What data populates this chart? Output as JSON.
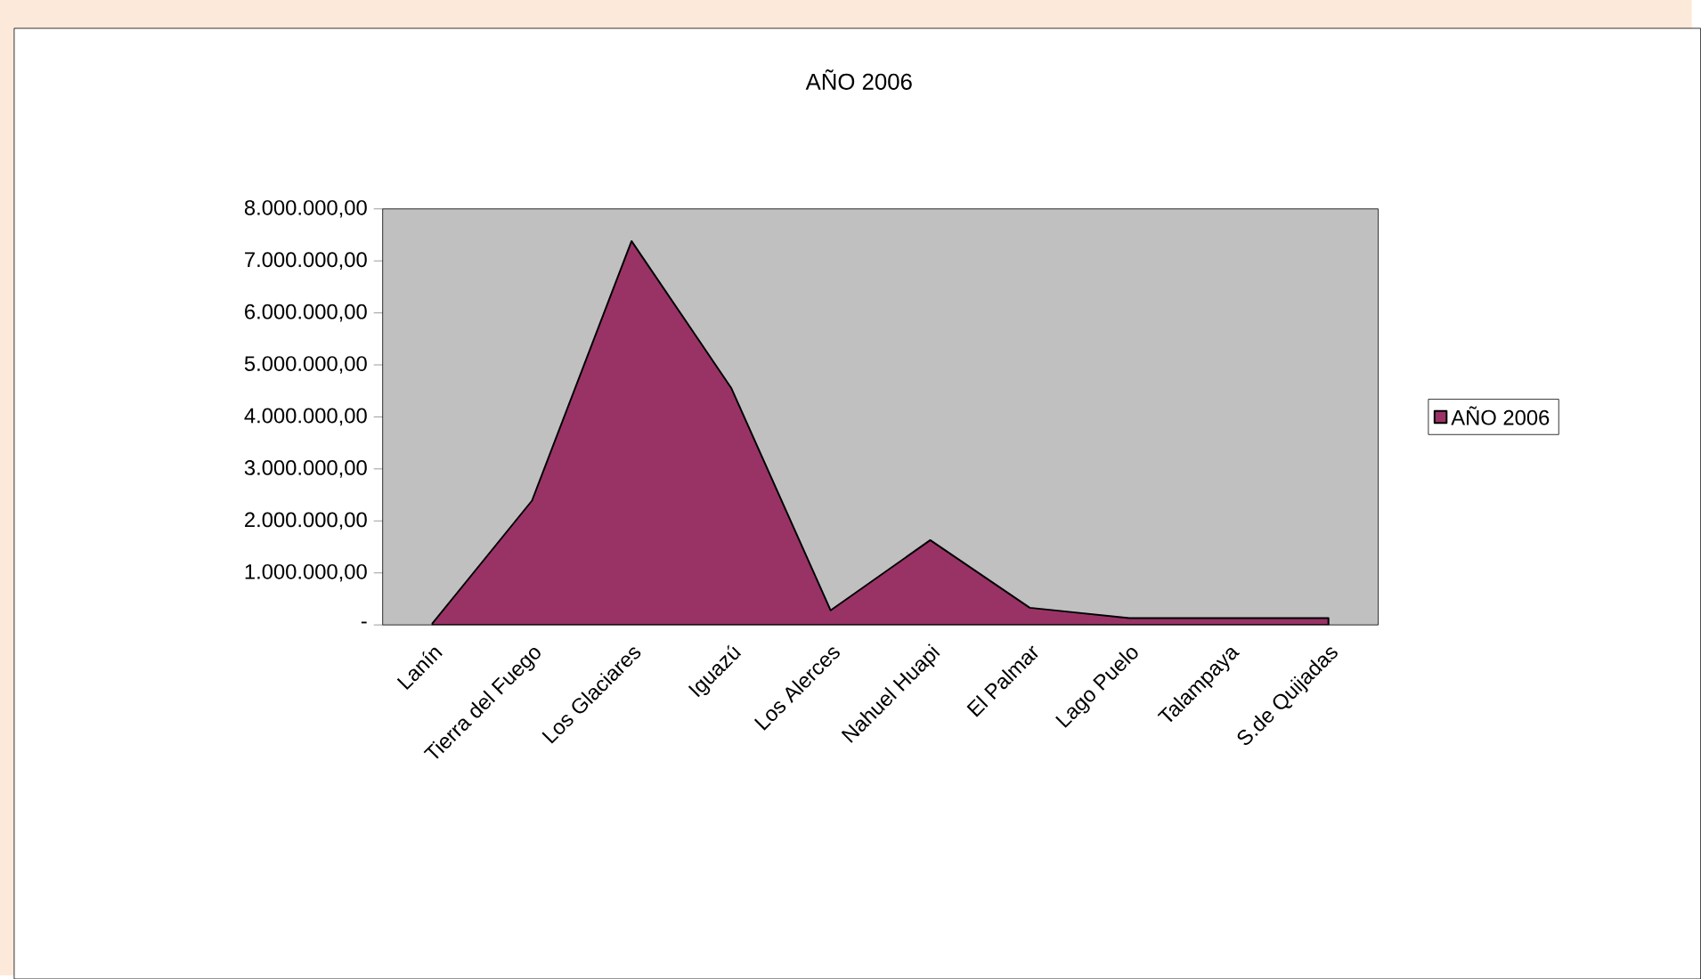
{
  "chart_data": {
    "type": "area",
    "title": "AÑO 2006",
    "categories": [
      "Lanín",
      "Tierra del Fuego",
      "Los Glaciares",
      "Iguazú",
      "Los Alerces",
      "Nahuel Huapi",
      "El Palmar",
      "Lago Puelo",
      "Talampaya",
      "S.de Quijadas"
    ],
    "series": [
      {
        "name": "AÑO 2006",
        "color": "#993366",
        "values": [
          30000,
          2390000,
          7380000,
          4560000,
          280000,
          1630000,
          330000,
          130000,
          130000,
          130000
        ]
      }
    ],
    "ylim": [
      0,
      8000000
    ],
    "yticks": [
      {
        "value": 0,
        "label": "-"
      },
      {
        "value": 1000000,
        "label": "1.000.000,00"
      },
      {
        "value": 2000000,
        "label": "2.000.000,00"
      },
      {
        "value": 3000000,
        "label": "3.000.000,00"
      },
      {
        "value": 4000000,
        "label": "4.000.000,00"
      },
      {
        "value": 5000000,
        "label": "5.000.000,00"
      },
      {
        "value": 6000000,
        "label": "6.000.000,00"
      },
      {
        "value": 7000000,
        "label": "7.000.000,00"
      },
      {
        "value": 8000000,
        "label": "8.000.000,00"
      }
    ],
    "grid": false,
    "legend": "right"
  }
}
